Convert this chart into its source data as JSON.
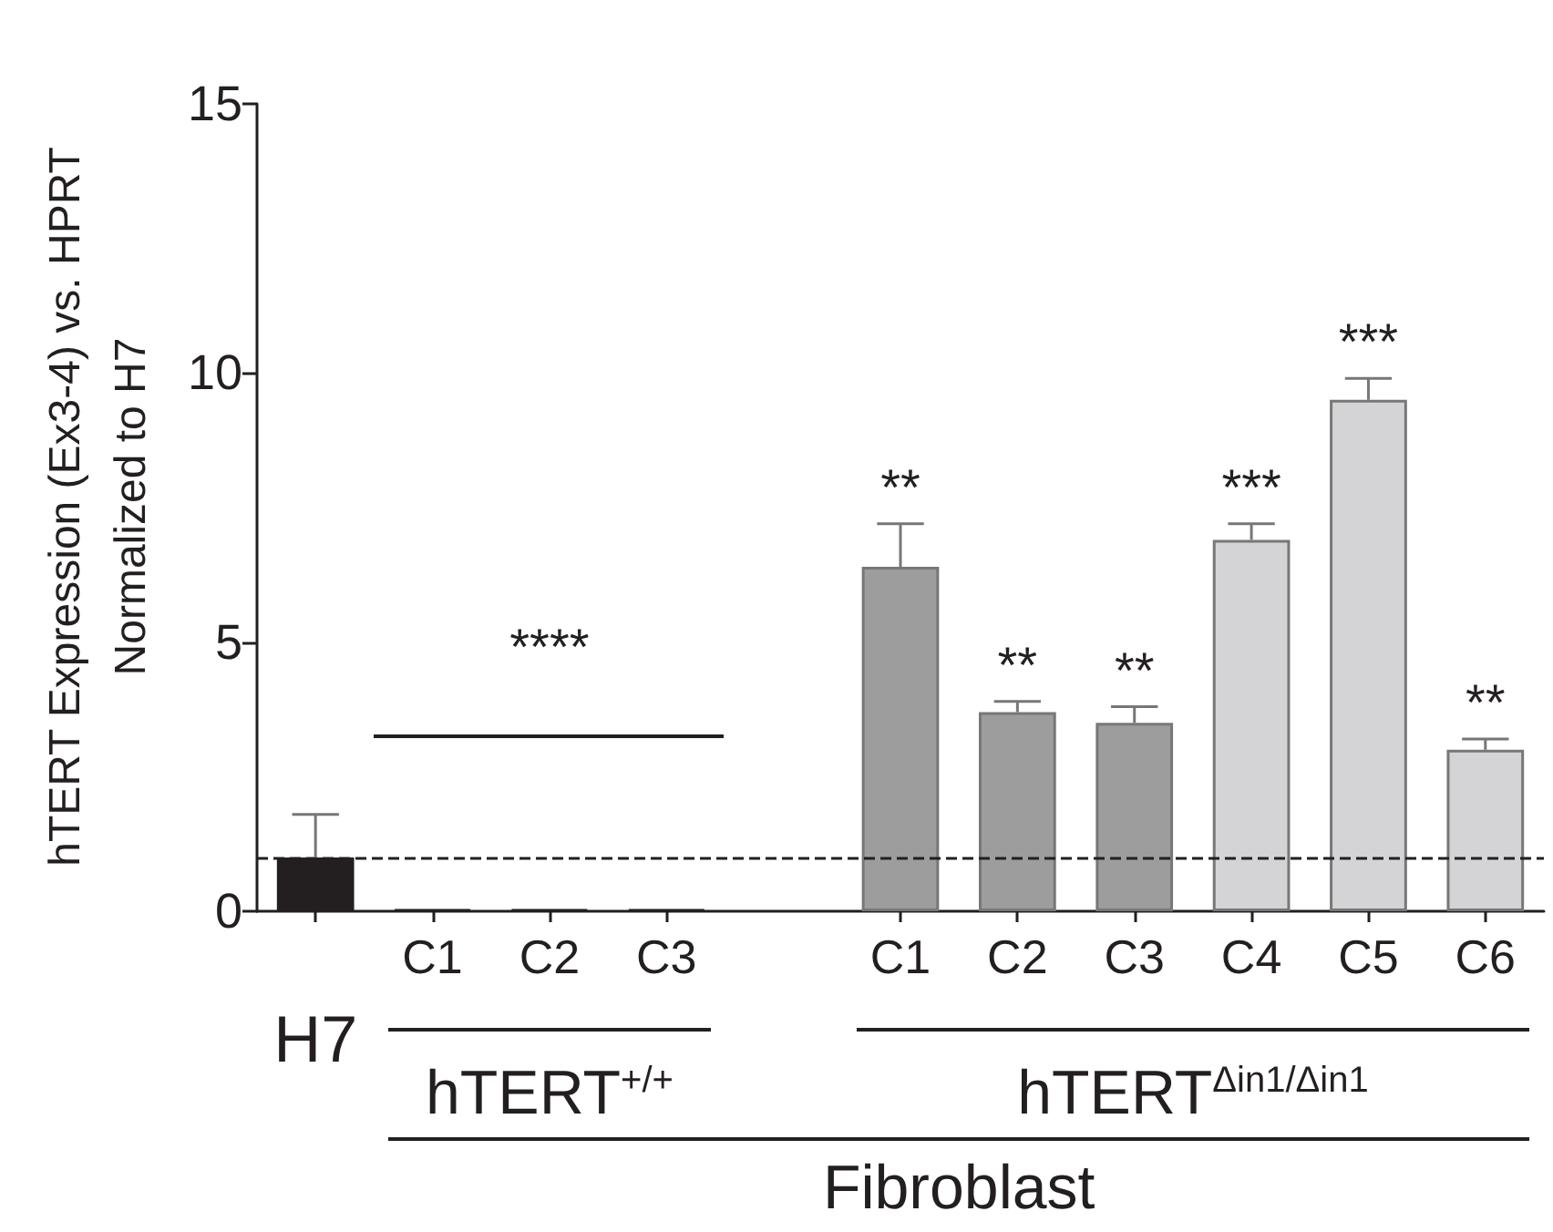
{
  "chart_data": {
    "type": "bar",
    "ylabel": "hTERT Expression (Ex3-4) vs. HPRT\nNormalized to H7",
    "categories": [
      "H7",
      "C1",
      "C2",
      "C3",
      null,
      "C1",
      "C2",
      "C3",
      "C4",
      "C5",
      "C6"
    ],
    "values": [
      1.0,
      0.03,
      0.03,
      0.03,
      null,
      6.4,
      3.7,
      3.5,
      6.9,
      9.5,
      3.0
    ],
    "colors": [
      "#231f20",
      "#231f20",
      "#231f20",
      "#231f20",
      "#ffffff",
      "#9d9d9d",
      "#9d9d9d",
      "#9d9d9d",
      "#d4d4d6",
      "#d4d4d6",
      "#d4d4d6"
    ],
    "errors": [
      [
        1.0,
        1.8
      ],
      null,
      null,
      null,
      null,
      [
        6.4,
        7.2
      ],
      [
        3.7,
        3.9
      ],
      [
        3.5,
        3.8
      ],
      [
        6.9,
        7.2
      ],
      [
        9.5,
        9.9
      ],
      [
        3.0,
        3.2
      ]
    ],
    "value_labels": [
      null,
      null,
      null,
      null,
      null,
      "**",
      "**",
      "**",
      "***",
      "***",
      "**"
    ],
    "ylim": [
      0,
      15
    ],
    "yticks": [
      0,
      5,
      10,
      15
    ],
    "grid": false,
    "ref_lines": [
      {
        "axis": "y",
        "value": 1,
        "line_style": "dashed",
        "color": "#231f20"
      }
    ],
    "annotations": [
      "****",
      "hTERT$^{+/+}$",
      "hTERT$^{Δin1/Δin1}$",
      "Fibroblast"
    ]
  }
}
